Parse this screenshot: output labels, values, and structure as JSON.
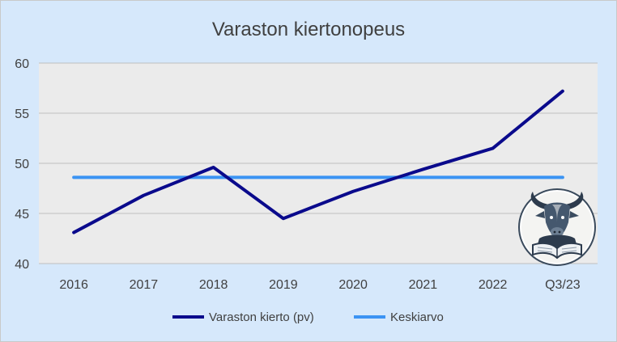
{
  "chart_data": {
    "type": "line",
    "title": "Varaston kiertonopeus",
    "xlabel": "",
    "ylabel": "",
    "categories": [
      "2016",
      "2017",
      "2018",
      "2019",
      "2020",
      "2021",
      "2022",
      "Q3/23"
    ],
    "ylim": [
      40,
      60
    ],
    "yticks": [
      "40",
      "45",
      "50",
      "55",
      "60"
    ],
    "grid": true,
    "legend_position": "bottom",
    "series": [
      {
        "name": "Varaston kierto (pv)",
        "values": [
          43.1,
          46.8,
          49.6,
          44.5,
          47.2,
          49.4,
          51.5,
          57.2
        ],
        "color": "#0a0a8c"
      },
      {
        "name": "Keskiarvo",
        "values": [
          48.6,
          48.6,
          48.6,
          48.6,
          48.6,
          48.6,
          48.6,
          48.6
        ],
        "color": "#3b93f3"
      }
    ]
  },
  "colors": {
    "background": "#d6e8fb",
    "plot_area": "#ebebeb",
    "gridline": "#bfbfbf"
  },
  "logo": {
    "icon": "bull-reading-book-icon"
  }
}
